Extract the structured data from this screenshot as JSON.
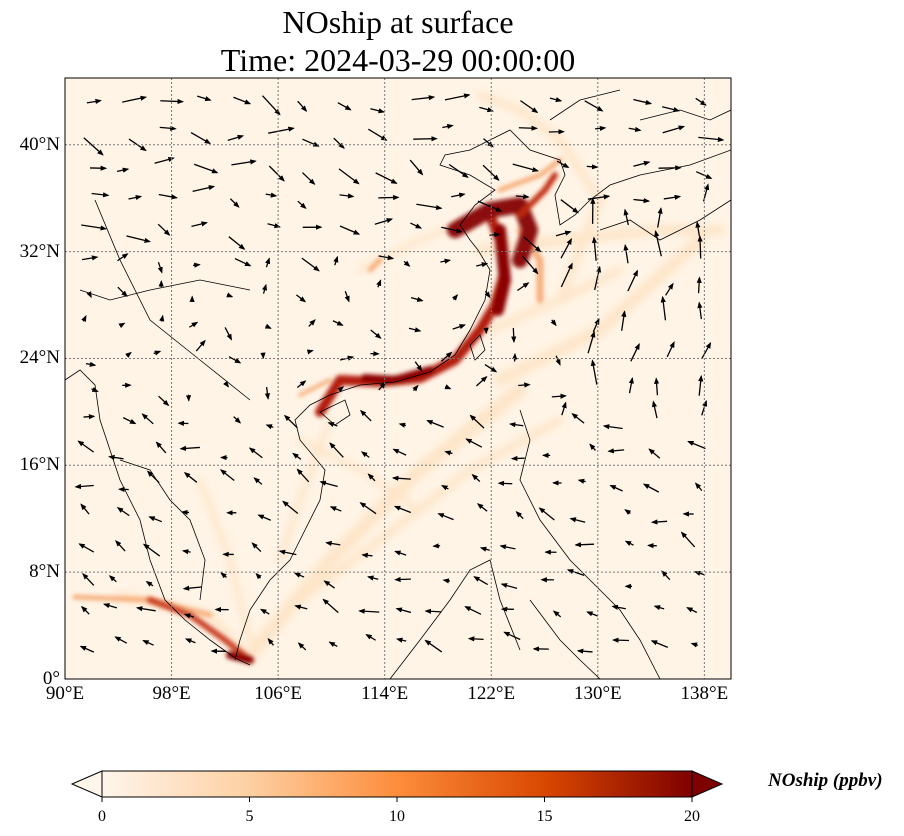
{
  "title": {
    "line1": "NOship at surface",
    "line2": "Time: 2024-03-29 00:00:00"
  },
  "map": {
    "lon_range": [
      90,
      140
    ],
    "lat_range": [
      0,
      45
    ],
    "lat_ticks": [
      {
        "value": 40,
        "label": "40°N"
      },
      {
        "value": 32,
        "label": "32°N"
      },
      {
        "value": 24,
        "label": "24°N"
      },
      {
        "value": 16,
        "label": "16°N"
      },
      {
        "value": 8,
        "label": "8°N"
      },
      {
        "value": 0,
        "label": "0°"
      }
    ],
    "lon_ticks": [
      {
        "value": 90,
        "label": "90°E"
      },
      {
        "value": 98,
        "label": "98°E"
      },
      {
        "value": 106,
        "label": "106°E"
      },
      {
        "value": 114,
        "label": "114°E"
      },
      {
        "value": 122,
        "label": "122°E"
      },
      {
        "value": 130,
        "label": "130°E"
      },
      {
        "value": 138,
        "label": "138°E"
      }
    ],
    "gridlines": "dotted",
    "colormap": [
      "#fff5eb",
      "#fdd0a2",
      "#fd8d3c",
      "#d94801",
      "#7f0000"
    ],
    "wind_vectors": "shown"
  },
  "colorbar": {
    "label": "NOship (ppbv)",
    "min": 0,
    "max": 20,
    "ticks": [
      "0",
      "5",
      "10",
      "15",
      "20"
    ],
    "extend": "both"
  }
}
